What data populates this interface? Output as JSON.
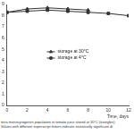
{
  "chart_data": {
    "type": "line",
    "subtitle": [
      "teria monocytogenes population in tomato juice stored at 30°C (triangles)",
      "Values with different superscript letters indicate statistically significant di"
    ],
    "x_label": "Time, days",
    "xlim": [
      0,
      12
    ],
    "xticks": [
      0,
      2,
      4,
      6,
      8,
      10,
      12
    ],
    "ylim": [
      0,
      9
    ],
    "yticks": [
      0,
      1,
      2,
      3,
      4,
      5,
      6,
      7,
      8,
      9
    ],
    "grid": false,
    "legend": "center",
    "series": [
      {
        "name": "storage at 30°C",
        "color": "#333333",
        "marker": "triangle",
        "line_style": "solid",
        "x": [
          0,
          2,
          4,
          6,
          8
        ],
        "values": [
          8.3,
          8.6,
          8.7,
          8.6,
          8.5
        ]
      },
      {
        "name": "storage at 4°C",
        "color": "#333333",
        "marker": "square",
        "line_style": "solid",
        "x": [
          0,
          2,
          4,
          6,
          8,
          10,
          12
        ],
        "values": [
          8.3,
          8.4,
          8.5,
          8.4,
          8.3,
          8.2,
          8.0
        ]
      }
    ]
  }
}
